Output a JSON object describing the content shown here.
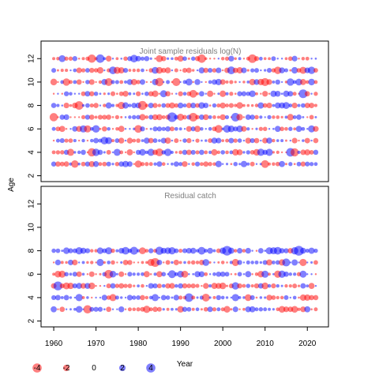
{
  "chart_data": [
    {
      "type": "scatter",
      "title": "Joint sample residuals log(N)",
      "xlabel": "Year",
      "ylabel": "Age",
      "xlim": [
        1957,
        2025
      ],
      "ylim": [
        1.5,
        13.5
      ],
      "x_ticks": [
        1960,
        1970,
        1980,
        1990,
        2000,
        2010,
        2020
      ],
      "y_ticks": [
        2,
        4,
        6,
        8,
        10,
        12
      ],
      "years": [
        1960,
        2022
      ],
      "ages": [
        3,
        12
      ],
      "residual_colors": {
        "negative": "#ff0000",
        "positive": "#0000ff"
      }
    },
    {
      "type": "scatter",
      "title": "Residual catch",
      "xlabel": "Year",
      "ylabel": "Age",
      "xlim": [
        1957,
        2025
      ],
      "ylim": [
        1.5,
        13.5
      ],
      "x_ticks": [
        1960,
        1970,
        1980,
        1990,
        2000,
        2010,
        2020
      ],
      "y_ticks": [
        2,
        4,
        6,
        8,
        10,
        12
      ],
      "years": [
        1960,
        2022
      ],
      "ages": [
        3,
        8
      ],
      "residual_colors": {
        "negative": "#ff0000",
        "positive": "#0000ff"
      }
    }
  ],
  "legend": {
    "items": [
      {
        "label": "-4",
        "value": -4,
        "color": "#ff0000"
      },
      {
        "label": "-2",
        "value": -2,
        "color": "#ff0000"
      },
      {
        "label": "0",
        "value": 0,
        "color": "#ffffff"
      },
      {
        "label": "2",
        "value": 2,
        "color": "#0000ff"
      },
      {
        "label": "4",
        "value": 4,
        "color": "#0000ff"
      }
    ]
  }
}
